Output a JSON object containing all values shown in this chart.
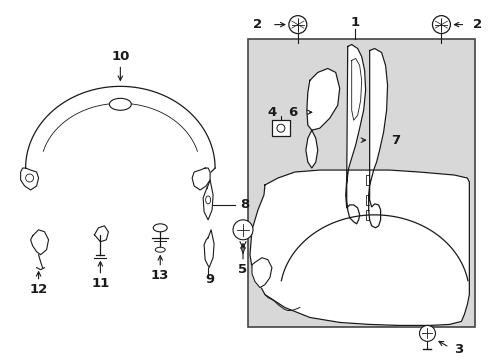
{
  "bg_color": "#ffffff",
  "box_bg": "#d8d8d8",
  "line_color": "#1a1a1a",
  "figsize": [
    4.89,
    3.6
  ],
  "dpi": 100
}
